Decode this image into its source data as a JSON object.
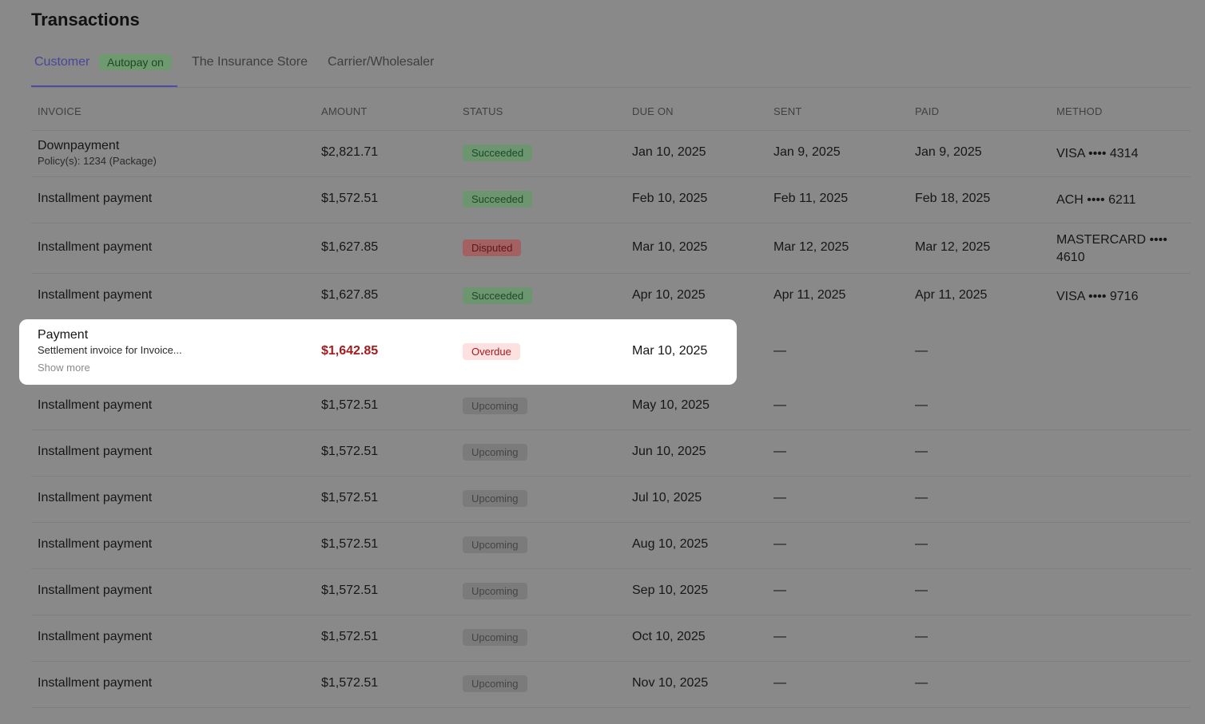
{
  "header": {
    "title": "Transactions"
  },
  "tabs": [
    {
      "label": "Customer",
      "badge": "Autopay on"
    },
    {
      "label": "The Insurance Store"
    },
    {
      "label": "Carrier/Wholesaler"
    }
  ],
  "table": {
    "columns": [
      "INVOICE",
      "AMOUNT",
      "STATUS",
      "DUE ON",
      "SENT",
      "PAID",
      "METHOD"
    ],
    "rows": [
      {
        "invoice": "Downpayment",
        "detail": "Policy(s): 1234 (Package)",
        "amount": "$2,821.71",
        "status": "Succeeded",
        "due": "Jan 10, 2025",
        "sent": "Jan 9, 2025",
        "paid": "Jan 9, 2025",
        "method": "VISA •••• 4314"
      },
      {
        "invoice": "Installment payment",
        "amount": "$1,572.51",
        "status": "Succeeded",
        "due": "Feb 10, 2025",
        "sent": "Feb 11, 2025",
        "paid": "Feb 18, 2025",
        "method": "ACH •••• 6211"
      },
      {
        "invoice": "Installment payment",
        "amount": "$1,627.85",
        "status": "Disputed",
        "due": "Mar 10, 2025",
        "sent": "Mar 12, 2025",
        "paid": "Mar 12, 2025",
        "method": "MASTERCARD •••• 4610"
      },
      {
        "invoice": "Installment payment",
        "amount": "$1,627.85",
        "status": "Succeeded",
        "due": "Apr 10, 2025",
        "sent": "Apr 11, 2025",
        "paid": "Apr 11, 2025",
        "method": "VISA •••• 9716"
      },
      {
        "invoice": "Payment",
        "detail": "Settlement invoice for Invoice...",
        "link": "Show more",
        "amount": "$1,642.85",
        "status": "Overdue",
        "due": "Mar 10, 2025",
        "sent": "—",
        "paid": "—"
      },
      {
        "invoice": "Installment payment",
        "amount": "$1,572.51",
        "status": "Upcoming",
        "due": "May 10, 2025",
        "sent": "—",
        "paid": "—"
      },
      {
        "invoice": "Installment payment",
        "amount": "$1,572.51",
        "status": "Upcoming",
        "due": "Jun 10, 2025",
        "sent": "—",
        "paid": "—"
      },
      {
        "invoice": "Installment payment",
        "amount": "$1,572.51",
        "status": "Upcoming",
        "due": "Jul 10, 2025",
        "sent": "—",
        "paid": "—"
      },
      {
        "invoice": "Installment payment",
        "amount": "$1,572.51",
        "status": "Upcoming",
        "due": "Aug 10, 2025",
        "sent": "—",
        "paid": "—"
      },
      {
        "invoice": "Installment payment",
        "amount": "$1,572.51",
        "status": "Upcoming",
        "due": "Sep 10, 2025",
        "sent": "—",
        "paid": "—"
      },
      {
        "invoice": "Installment payment",
        "amount": "$1,572.51",
        "status": "Upcoming",
        "due": "Oct 10, 2025",
        "sent": "—",
        "paid": "—"
      },
      {
        "invoice": "Installment payment",
        "amount": "$1,572.51",
        "status": "Upcoming",
        "due": "Nov 10, 2025",
        "sent": "—",
        "paid": "—"
      }
    ]
  }
}
